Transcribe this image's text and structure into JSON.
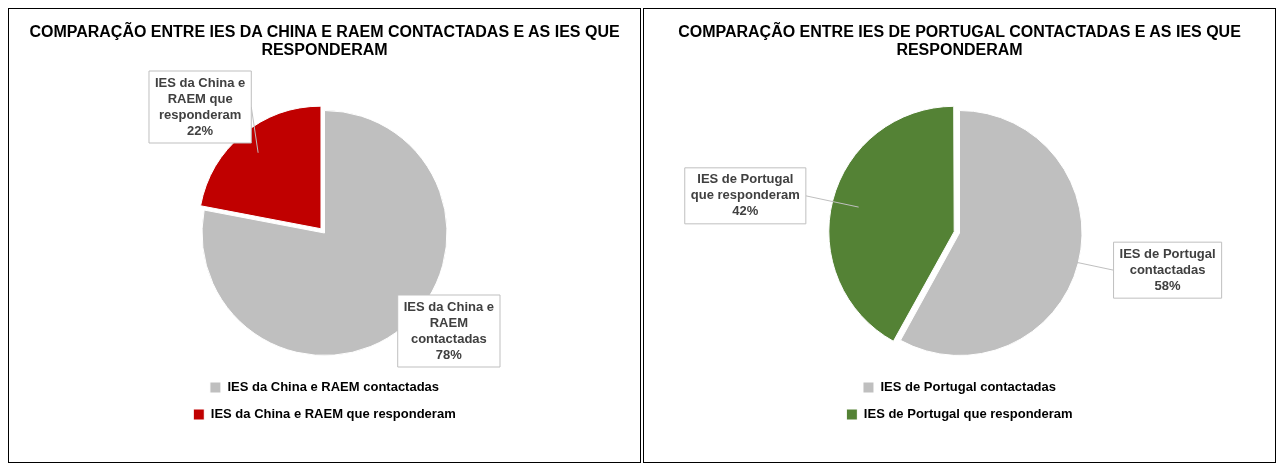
{
  "chart_data": [
    {
      "type": "pie",
      "title": "COMPARAÇÃO  ENTRE IES DA CHINA E RAEM CONTACTADAS E AS IES QUE RESPONDERAM",
      "categories": [
        "IES da China e RAEM contactadas",
        "IES da China e RAEM que responderam"
      ],
      "values": [
        78,
        22
      ],
      "colors": [
        "#bfbfbf",
        "#c00000"
      ],
      "value_labels": [
        "78%",
        "22%"
      ],
      "legend": "bottom"
    },
    {
      "type": "pie",
      "title": "COMPARAÇÃO  ENTRE IES DE PORTUGAL CONTACTADAS  E AS IES QUE RESPONDERAM",
      "categories": [
        "IES de Portugal contactadas",
        "IES de Portugal que responderam"
      ],
      "values": [
        58,
        42
      ],
      "colors": [
        "#bfbfbf",
        "#548235"
      ],
      "value_labels": [
        "58%",
        "42%"
      ],
      "legend": "bottom"
    }
  ]
}
